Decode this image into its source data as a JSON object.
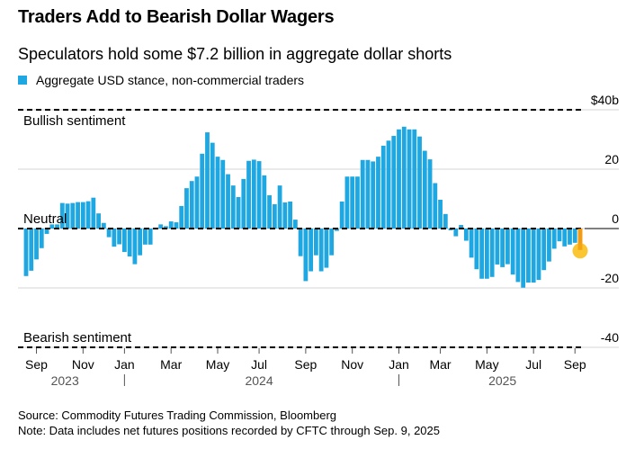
{
  "chart_data": {
    "type": "bar",
    "title": "Traders Add to Bearish Dollar Wagers",
    "subtitle": "Speculators hold some $7.2 billion in aggregate dollar shorts",
    "legend": [
      {
        "name": "Aggregate USD stance, non-commercial traders",
        "color": "#1ea7e1"
      }
    ],
    "legend_placement": "top-left",
    "ylim": [
      -40,
      40
    ],
    "y_ticks": [
      {
        "value": 40,
        "label": "$40b"
      },
      {
        "value": 20,
        "label": "20"
      },
      {
        "value": 0,
        "label": "0"
      },
      {
        "value": -20,
        "label": "-20"
      },
      {
        "value": -40,
        "label": "-40"
      }
    ],
    "annotations": {
      "bullish": "Bullish sentiment",
      "neutral": "Neutral",
      "bearish": "Bearish sentiment"
    },
    "x_ticks": [
      {
        "index": 2,
        "label": "Sep"
      },
      {
        "index": 11,
        "label": "Nov"
      },
      {
        "index": 19,
        "label": "Jan"
      },
      {
        "index": 28,
        "label": "Mar"
      },
      {
        "index": 37,
        "label": "May"
      },
      {
        "index": 45,
        "label": "Jul"
      },
      {
        "index": 54,
        "label": "Sep"
      },
      {
        "index": 63,
        "label": "Nov"
      },
      {
        "index": 72,
        "label": "Jan"
      },
      {
        "index": 80,
        "label": "Mar"
      },
      {
        "index": 89,
        "label": "May"
      },
      {
        "index": 98,
        "label": "Jul"
      },
      {
        "index": 106,
        "label": "Sep"
      }
    ],
    "years": [
      {
        "index": 7.5,
        "label": "2023"
      },
      {
        "index": 45,
        "label": "2024"
      },
      {
        "index": 92,
        "label": "2025"
      }
    ],
    "year_separators": [
      19,
      72
    ],
    "frequency": "weekly",
    "values": [
      -16,
      -14.2,
      -10.4,
      -6.6,
      -1.8,
      1.4,
      1.4,
      8.6,
      8.4,
      8.6,
      8.9,
      8.9,
      9.2,
      10.4,
      5.1,
      1.9,
      -2.9,
      -6.1,
      -5.3,
      -7.9,
      -9.4,
      -12,
      -9,
      -5.4,
      -5.4,
      0.3,
      1.4,
      0.8,
      2.4,
      2.1,
      7.6,
      13.6,
      16,
      17.5,
      25.2,
      32.4,
      28.9,
      24.2,
      23.1,
      18.3,
      14.5,
      10.6,
      16.7,
      22.8,
      23.2,
      22.7,
      17.9,
      11.2,
      8.2,
      14.5,
      8.8,
      9.1,
      3,
      -9.3,
      -17.7,
      -14.4,
      -9,
      -14.4,
      -13.2,
      -9,
      -0.8,
      9.1,
      17.5,
      17.5,
      17.5,
      23.1,
      23.1,
      22.6,
      24.2,
      27.9,
      29.6,
      31.2,
      33.4,
      34.3,
      33.4,
      33.4,
      31,
      26.2,
      23.3,
      15.3,
      9.7,
      4.9,
      -0.6,
      -2.6,
      1.2,
      -4.1,
      -9.8,
      -13.7,
      -16.9,
      -16.9,
      -16.3,
      -12.1,
      -13,
      -12,
      -15.5,
      -18,
      -19.9,
      -18.2,
      -18.2,
      -17.3,
      -14,
      -11.1,
      -6.8,
      -4.3,
      -6,
      -5.4,
      -4.8,
      -7.2
    ],
    "highlight_last": {
      "value": -7.2,
      "color": "#f39c12",
      "marker_color": "#f9c01c"
    },
    "colors": {
      "bar": "#1ea7e1"
    }
  },
  "footer": {
    "source": "Source: Commodity Futures Trading Commission, Bloomberg",
    "note": "Note: Data includes net futures positions recorded by CFTC through Sep. 9, 2025"
  }
}
